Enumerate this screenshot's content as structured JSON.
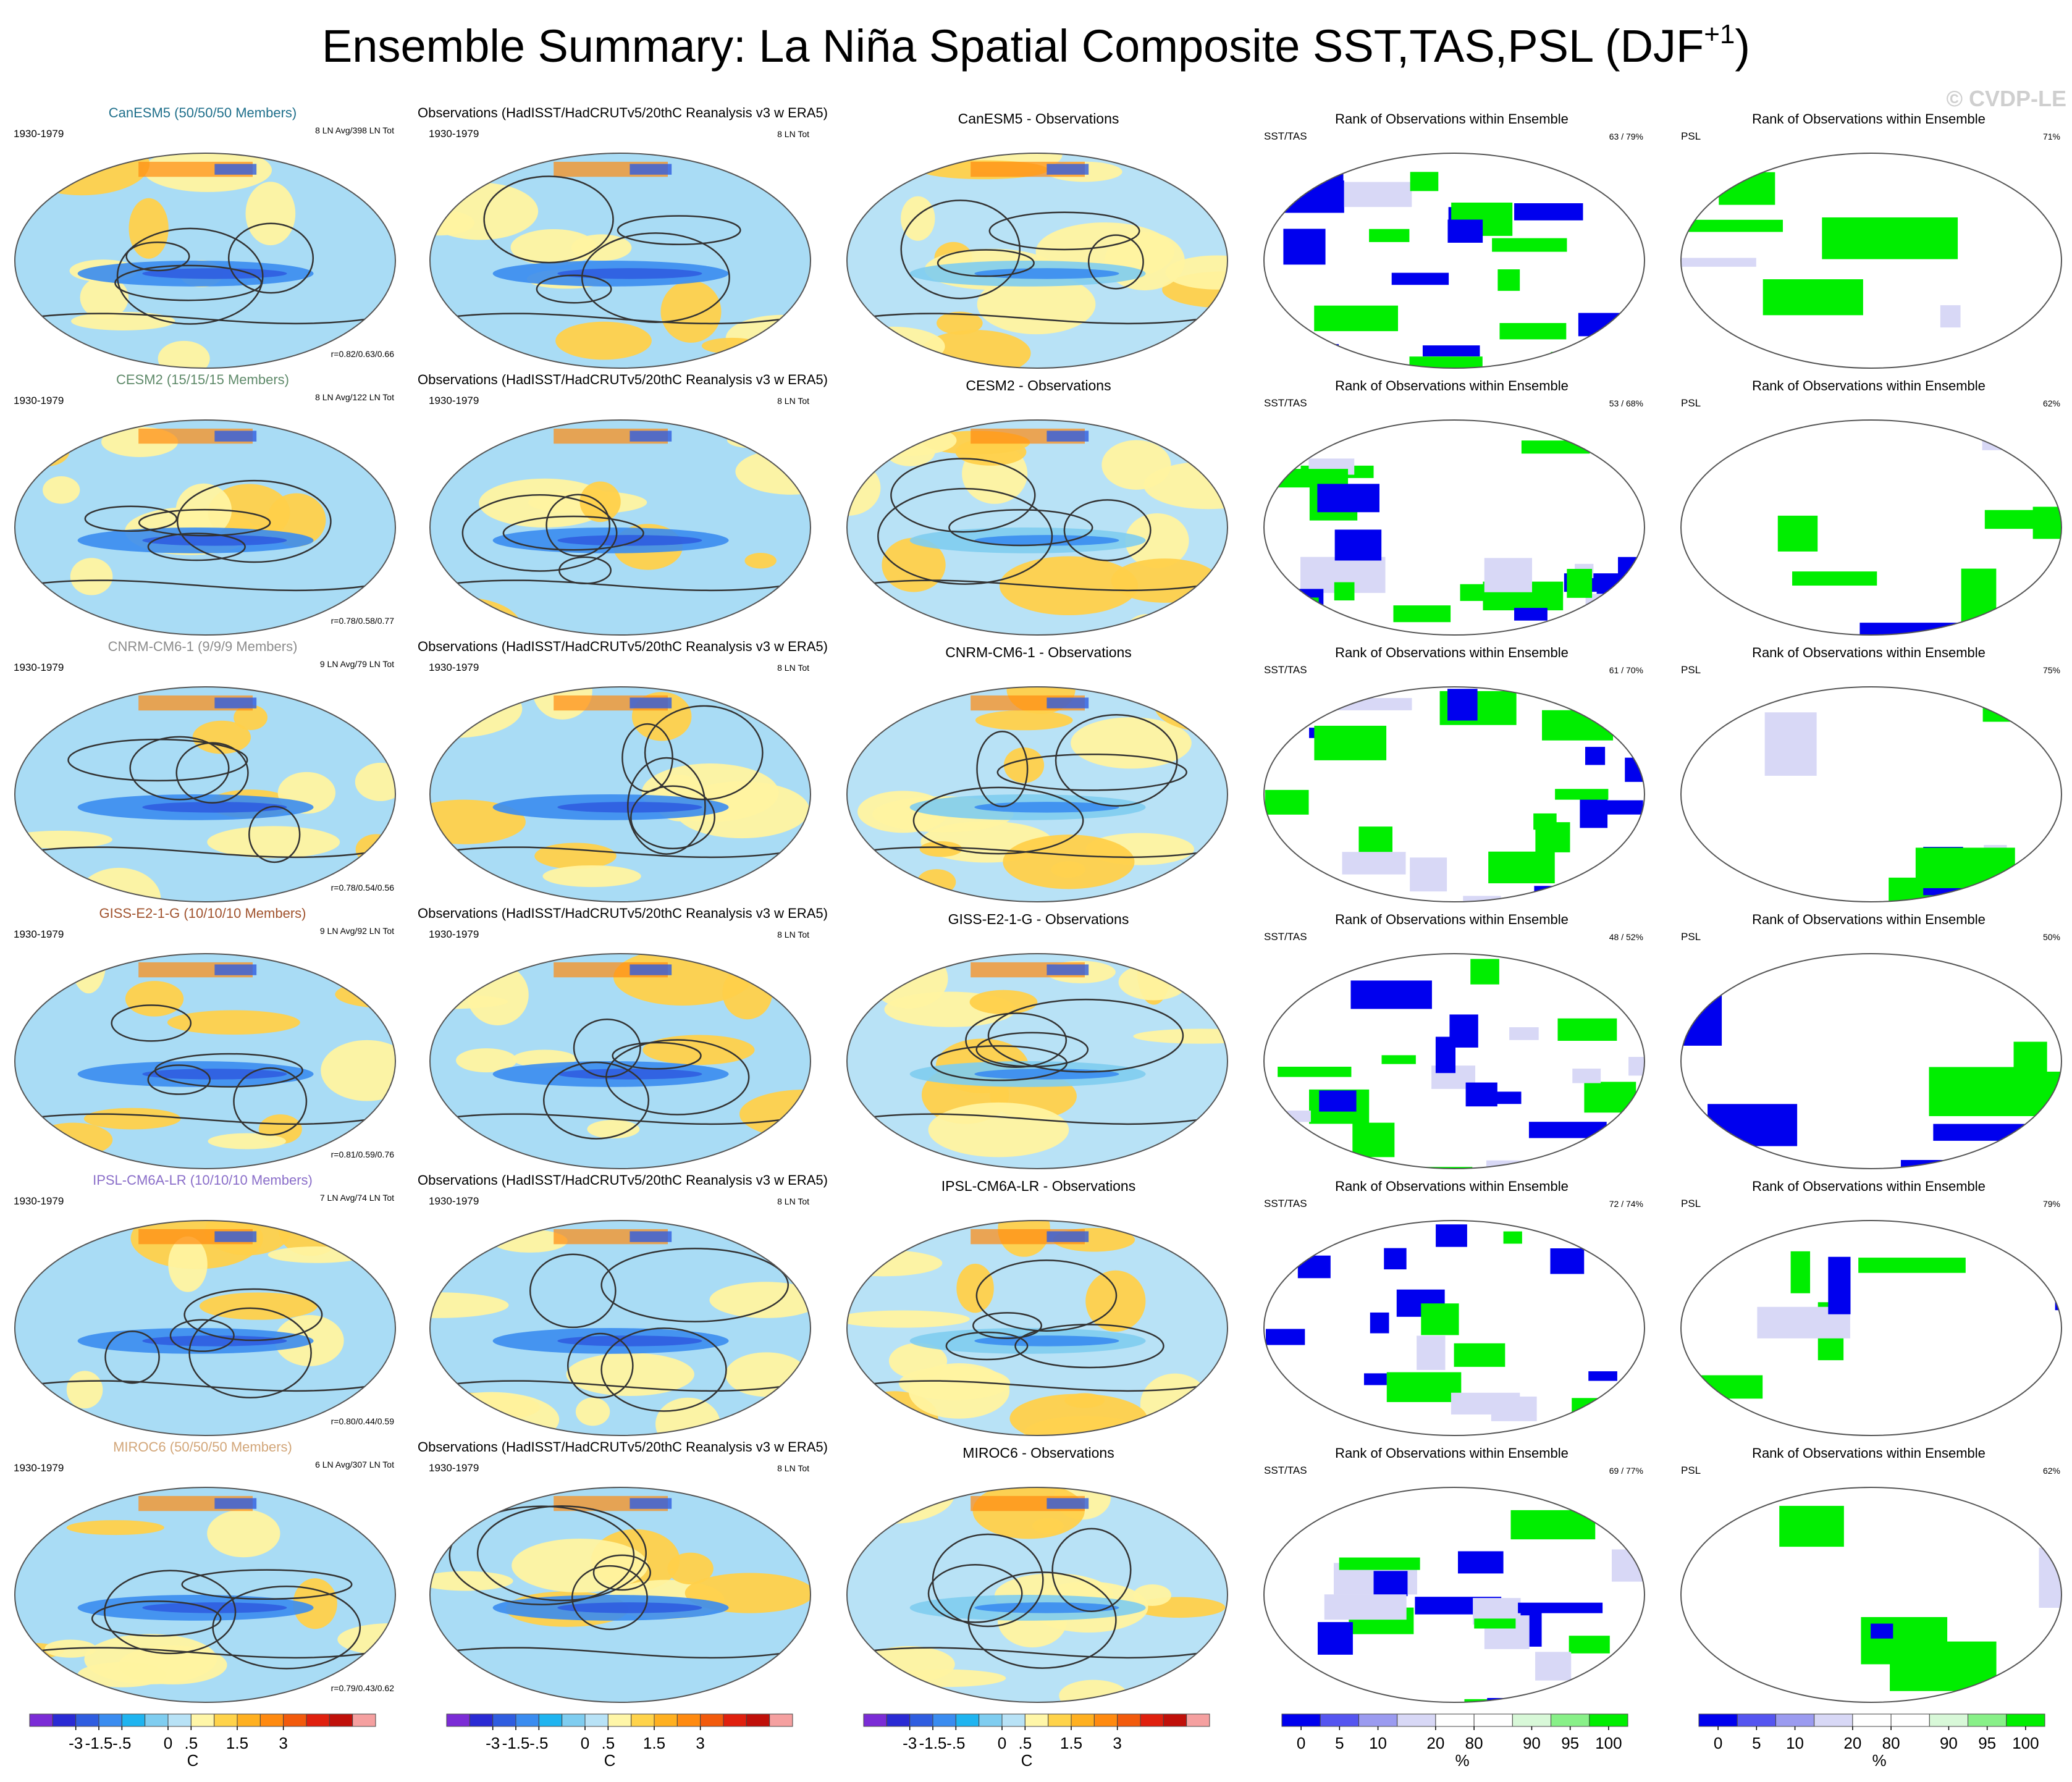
{
  "chart_data": {
    "type": "heatmap",
    "title": "Ensemble Summary: La Niña Spatial Composite SST,TAS,PSL (DJF",
    "title_superscript": "+1",
    "title_close": ")",
    "watermark": "© CVDP-LE",
    "period": "1930-1979",
    "obs_title": "Observations (HadISST/HadCRUTv5/20thC Reanalysis v3 w ERA5)",
    "obs_count": "8 LN Tot",
    "rank_title": "Rank of Observations within Ensemble",
    "rank_left_label": "SST/TAS",
    "rank_right_label": "PSL",
    "rows": [
      {
        "model": "CanESM5 (50/50/50 Members)",
        "model_color": "#1f6f8b",
        "diff_title": "CanESM5 - Observations",
        "counts": "8 LN Avg/398 LN Tot",
        "r": "r=0.82/0.63/0.66",
        "rank_sst": "63 /  79%",
        "rank_psl": "71%"
      },
      {
        "model": "CESM2 (15/15/15 Members)",
        "model_color": "#5f8a6a",
        "diff_title": "CESM2 - Observations",
        "counts": "8 LN Avg/122 LN Tot",
        "r": "r=0.78/0.58/0.77",
        "rank_sst": "53 /  68%",
        "rank_psl": "62%"
      },
      {
        "model": "CNRM-CM6-1 (9/9/9 Members)",
        "model_color": "#8c8c8c",
        "diff_title": "CNRM-CM6-1 - Observations",
        "counts": "9 LN Avg/79 LN Tot",
        "r": "r=0.78/0.54/0.56",
        "rank_sst": "61 /  70%",
        "rank_psl": "75%"
      },
      {
        "model": "GISS-E2-1-G (10/10/10 Members)",
        "model_color": "#a0522d",
        "diff_title": "GISS-E2-1-G - Observations",
        "counts": "9 LN Avg/92 LN Tot",
        "r": "r=0.81/0.59/0.76",
        "rank_sst": "48 /  52%",
        "rank_psl": "50%"
      },
      {
        "model": "IPSL-CM6A-LR (10/10/10 Members)",
        "model_color": "#8a6ec9",
        "diff_title": "IPSL-CM6A-LR - Observations",
        "counts": "7 LN Avg/74 LN Tot",
        "r": "r=0.80/0.44/0.59",
        "rank_sst": "72 /  74%",
        "rank_psl": "79%"
      },
      {
        "model": "MIROC6 (50/50/50 Members)",
        "model_color": "#d2a679",
        "diff_title": "MIROC6 - Observations",
        "counts": "6 LN Avg/307 LN Tot",
        "r": "r=0.79/0.43/0.62",
        "rank_sst": "69 /  77%",
        "rank_psl": "62%"
      }
    ],
    "temp_colorbar": {
      "unit": "C",
      "colors": [
        "#7b2cd6",
        "#2a2ad4",
        "#2f5de0",
        "#3a8cf0",
        "#1fb4f0",
        "#7fcdf0",
        "#b8e2f6",
        "#fff6a8",
        "#ffd34a",
        "#ffb020",
        "#ff8a10",
        "#f25a0c",
        "#e0200e",
        "#c0100a",
        "#f5a0a0"
      ],
      "tick_labels": [
        "-3",
        "-1.5",
        "-.5",
        "0",
        ".5",
        "1.5",
        "3"
      ]
    },
    "rank_colorbar": {
      "unit": "%",
      "colors": [
        "#0000ee",
        "#5555f0",
        "#9b9bf0",
        "#d8d8f6",
        "#ffffff",
        "#ffffff",
        "#d8f8d8",
        "#88f088",
        "#00ee00"
      ],
      "tick_labels": [
        "0",
        "5",
        "10",
        "20",
        "80",
        "90",
        "95",
        "100"
      ]
    }
  }
}
